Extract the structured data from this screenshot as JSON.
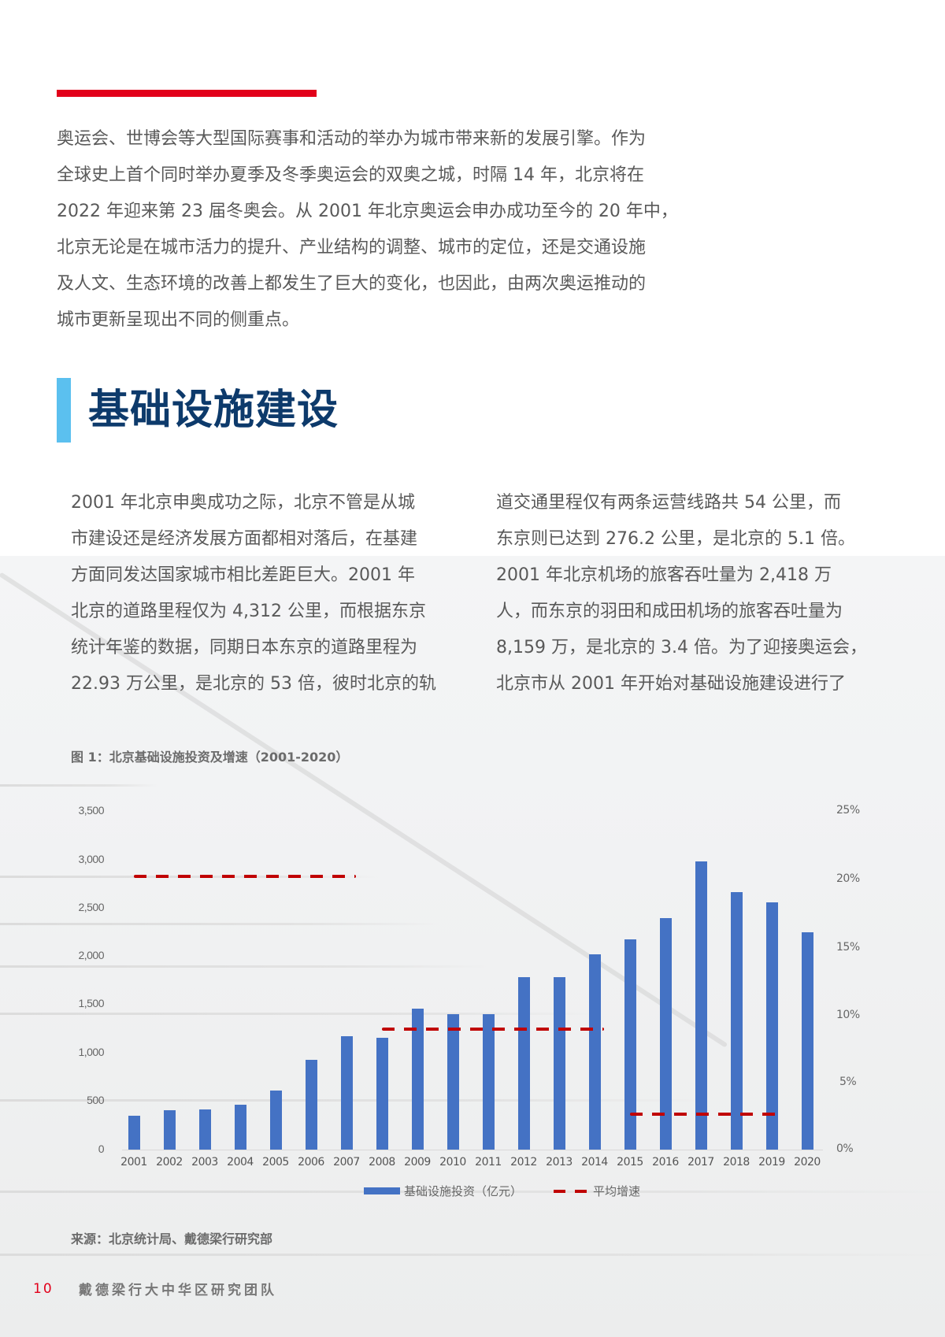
{
  "intro": {
    "lines": [
      "奥运会、世博会等大型国际赛事和活动的举办为城市带来新的发展引擎。作为",
      "全球史上首个同时举办夏季及冬季奥运会的双奥之城，时隔 14 年，北京将在",
      "2022 年迎来第 23 届冬奥会。从 2001 年北京奥运会申办成功至今的 20 年中，",
      "北京无论是在城市活力的提升、产业结构的调整、城市的定位，还是交通设施",
      "及人文、生态环境的改善上都发生了巨大的变化，也因此，由两次奥运推动的",
      "城市更新呈现出不同的侧重点。"
    ]
  },
  "section": {
    "title": "基础设施建设"
  },
  "body": {
    "left_lines": [
      "2001 年北京申奥成功之际，北京不管是从城",
      "市建设还是经济发展方面都相对落后，在基建",
      "方面同发达国家城市相比差距巨大。2001 年",
      "北京的道路里程仅为 4,312 公里，而根据东京",
      "统计年鉴的数据，同期日本东京的道路里程为",
      "22.93 万公里，是北京的 53 倍，彼时北京的轨"
    ],
    "right_lines": [
      "道交通里程仅有两条运营线路共 54 公里，而",
      "东京则已达到 276.2 公里，是北京的 5.1 倍。",
      "2001 年北京机场的旅客吞吐量为 2,418 万",
      "人，而东京的羽田和成田机场的旅客吞吐量为",
      "8,159 万，是北京的 3.4 倍。为了迎接奥运会，",
      "北京市从 2001 年开始对基础设施建设进行了"
    ]
  },
  "figure": {
    "title": "图 1：北京基础设施投资及增速（2001-2020）",
    "source": "来源：北京统计局、戴德梁行研究部",
    "legend": {
      "bar_label": "基础设施投资（亿元）",
      "line_label": "平均增速"
    },
    "left_ticks": [
      "3,500",
      "3,000",
      "2,500",
      "2,000",
      "1,500",
      "1,000",
      "500",
      "0"
    ],
    "right_ticks": [
      "25%",
      "20%",
      "15%",
      "10%",
      "5%",
      "0%"
    ],
    "colors": {
      "bar": "#4472c4",
      "line": "#c00000"
    }
  },
  "chart_data": {
    "type": "bar",
    "title": "图 1：北京基础设施投资及增速（2001-2020）",
    "categories": [
      "2001",
      "2002",
      "2003",
      "2004",
      "2005",
      "2006",
      "2007",
      "2008",
      "2009",
      "2010",
      "2011",
      "2012",
      "2013",
      "2014",
      "2015",
      "2016",
      "2017",
      "2018",
      "2019",
      "2020"
    ],
    "series": [
      {
        "name": "基础设施投资（亿元）",
        "type": "bar",
        "axis": "left",
        "values": [
          350,
          410,
          415,
          463,
          610,
          927,
          1171,
          1154,
          1455,
          1398,
          1398,
          1780,
          1780,
          2016,
          2170,
          2390,
          2976,
          2660,
          2553,
          2244
        ]
      },
      {
        "name": "平均增速",
        "type": "line",
        "style": "dashed",
        "axis": "right",
        "segments": [
          {
            "from": "2001",
            "to": "2007",
            "value_pct": 20.2
          },
          {
            "from": "2008",
            "to": "2014",
            "value_pct": 8.9
          },
          {
            "from": "2015",
            "to": "2019",
            "value_pct": 2.6
          }
        ]
      }
    ],
    "xlabel": "",
    "ylabel": "",
    "ylim": [
      0,
      3500
    ],
    "y2lim": [
      0,
      25
    ],
    "grid": false,
    "legend_position": "bottom"
  },
  "footer": {
    "page_number": "10",
    "team": "戴德梁行大中华区研究团队"
  }
}
